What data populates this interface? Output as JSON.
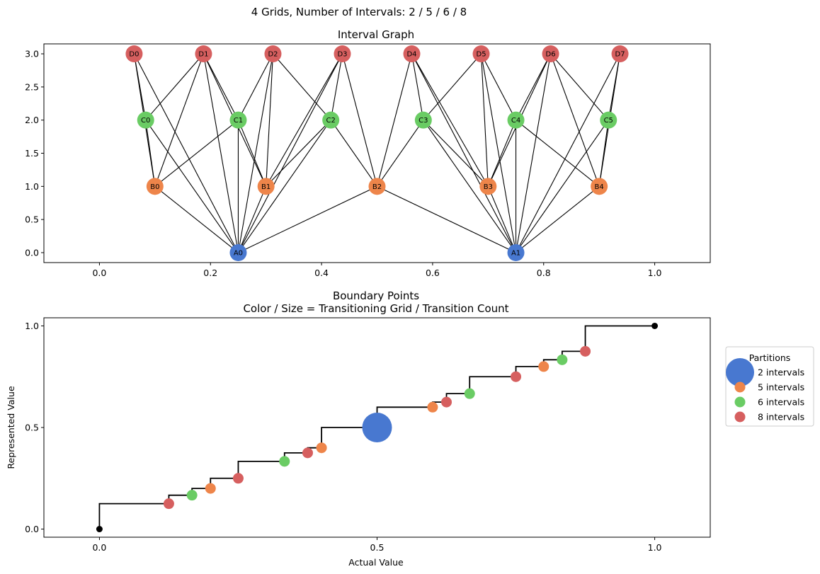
{
  "figure": {
    "suptitle": "4 Grids, Number of Intervals: 2 / 5 / 6 / 8"
  },
  "colors": {
    "A": "#4878d0",
    "B": "#ee854a",
    "C": "#6acc64",
    "D": "#d65f5f",
    "endpoint": "#000000"
  },
  "chart_data": [
    {
      "type": "network",
      "title": "Interval Graph",
      "xlim": [
        -0.1,
        1.1
      ],
      "ylim": [
        -0.15,
        3.15
      ],
      "xticks": [
        0.0,
        0.2,
        0.4,
        0.6,
        0.8,
        1.0
      ],
      "xtick_labels": [
        "0.0",
        "0.2",
        "0.4",
        "0.6",
        "0.8",
        "1.0"
      ],
      "yticks": [
        0.0,
        0.5,
        1.0,
        1.5,
        2.0,
        2.5,
        3.0
      ],
      "ytick_labels": [
        "0.0",
        "0.5",
        "1.0",
        "1.5",
        "2.0",
        "2.5",
        "3.0"
      ],
      "nodes": [
        {
          "id": "A0",
          "x": 0.25,
          "y": 0,
          "group": "A"
        },
        {
          "id": "A1",
          "x": 0.75,
          "y": 0,
          "group": "A"
        },
        {
          "id": "B0",
          "x": 0.1,
          "y": 1,
          "group": "B"
        },
        {
          "id": "B1",
          "x": 0.3,
          "y": 1,
          "group": "B"
        },
        {
          "id": "B2",
          "x": 0.5,
          "y": 1,
          "group": "B"
        },
        {
          "id": "B3",
          "x": 0.7,
          "y": 1,
          "group": "B"
        },
        {
          "id": "B4",
          "x": 0.9,
          "y": 1,
          "group": "B"
        },
        {
          "id": "C0",
          "x": 0.0833,
          "y": 2,
          "group": "C"
        },
        {
          "id": "C1",
          "x": 0.25,
          "y": 2,
          "group": "C"
        },
        {
          "id": "C2",
          "x": 0.4167,
          "y": 2,
          "group": "C"
        },
        {
          "id": "C3",
          "x": 0.5833,
          "y": 2,
          "group": "C"
        },
        {
          "id": "C4",
          "x": 0.75,
          "y": 2,
          "group": "C"
        },
        {
          "id": "C5",
          "x": 0.9167,
          "y": 2,
          "group": "C"
        },
        {
          "id": "D0",
          "x": 0.0625,
          "y": 3,
          "group": "D"
        },
        {
          "id": "D1",
          "x": 0.1875,
          "y": 3,
          "group": "D"
        },
        {
          "id": "D2",
          "x": 0.3125,
          "y": 3,
          "group": "D"
        },
        {
          "id": "D3",
          "x": 0.4375,
          "y": 3,
          "group": "D"
        },
        {
          "id": "D4",
          "x": 0.5625,
          "y": 3,
          "group": "D"
        },
        {
          "id": "D5",
          "x": 0.6875,
          "y": 3,
          "group": "D"
        },
        {
          "id": "D6",
          "x": 0.8125,
          "y": 3,
          "group": "D"
        },
        {
          "id": "D7",
          "x": 0.9375,
          "y": 3,
          "group": "D"
        }
      ],
      "edges": [
        [
          "A0",
          "B0"
        ],
        [
          "A0",
          "B1"
        ],
        [
          "A0",
          "B2"
        ],
        [
          "A0",
          "C0"
        ],
        [
          "A0",
          "C1"
        ],
        [
          "A0",
          "C2"
        ],
        [
          "A0",
          "D0"
        ],
        [
          "A0",
          "D1"
        ],
        [
          "A0",
          "D2"
        ],
        [
          "A0",
          "D3"
        ],
        [
          "A1",
          "B2"
        ],
        [
          "A1",
          "B3"
        ],
        [
          "A1",
          "B4"
        ],
        [
          "A1",
          "C3"
        ],
        [
          "A1",
          "C4"
        ],
        [
          "A1",
          "C5"
        ],
        [
          "A1",
          "D4"
        ],
        [
          "A1",
          "D5"
        ],
        [
          "A1",
          "D6"
        ],
        [
          "A1",
          "D7"
        ],
        [
          "B0",
          "C0"
        ],
        [
          "B0",
          "C1"
        ],
        [
          "B0",
          "D0"
        ],
        [
          "B0",
          "D1"
        ],
        [
          "B1",
          "C1"
        ],
        [
          "B1",
          "C2"
        ],
        [
          "B1",
          "D1"
        ],
        [
          "B1",
          "D2"
        ],
        [
          "B1",
          "D3"
        ],
        [
          "B2",
          "C2"
        ],
        [
          "B2",
          "C3"
        ],
        [
          "B2",
          "D3"
        ],
        [
          "B2",
          "D4"
        ],
        [
          "B3",
          "C3"
        ],
        [
          "B3",
          "C4"
        ],
        [
          "B3",
          "D4"
        ],
        [
          "B3",
          "D5"
        ],
        [
          "B3",
          "D6"
        ],
        [
          "B4",
          "C4"
        ],
        [
          "B4",
          "C5"
        ],
        [
          "B4",
          "D6"
        ],
        [
          "B4",
          "D7"
        ],
        [
          "C0",
          "D0"
        ],
        [
          "C0",
          "D1"
        ],
        [
          "C1",
          "D1"
        ],
        [
          "C1",
          "D2"
        ],
        [
          "C2",
          "D2"
        ],
        [
          "C2",
          "D3"
        ],
        [
          "C3",
          "D4"
        ],
        [
          "C3",
          "D5"
        ],
        [
          "C4",
          "D5"
        ],
        [
          "C4",
          "D6"
        ],
        [
          "C5",
          "D6"
        ],
        [
          "C5",
          "D7"
        ]
      ]
    },
    {
      "type": "scatter",
      "title": "Boundary Points",
      "subtitle": "Color / Size = Transitioning Grid / Transition Count",
      "xlabel": "Actual Value",
      "ylabel": "Represented Value",
      "xlim": [
        -0.1,
        1.1
      ],
      "ylim": [
        -0.04,
        1.04
      ],
      "xticks": [
        0.0,
        0.5,
        1.0
      ],
      "xtick_labels": [
        "0.0",
        "0.5",
        "1.0"
      ],
      "yticks": [
        0.0,
        0.5,
        1.0
      ],
      "ytick_labels": [
        "0.0",
        "0.5",
        "1.0"
      ],
      "step_points": [
        [
          0,
          0
        ],
        [
          0.125,
          0.125
        ],
        [
          0.1667,
          0.1667
        ],
        [
          0.2,
          0.2
        ],
        [
          0.25,
          0.25
        ],
        [
          0.3333,
          0.3333
        ],
        [
          0.375,
          0.375
        ],
        [
          0.4,
          0.4
        ],
        [
          0.5,
          0.5
        ],
        [
          0.6,
          0.6
        ],
        [
          0.625,
          0.625
        ],
        [
          0.6667,
          0.6667
        ],
        [
          0.75,
          0.75
        ],
        [
          0.8,
          0.8
        ],
        [
          0.8333,
          0.8333
        ],
        [
          0.875,
          0.875
        ],
        [
          1,
          1
        ]
      ],
      "endpoints": [
        [
          0,
          0
        ],
        [
          1,
          1
        ]
      ],
      "points": [
        {
          "x": 0.125,
          "y": 0.125,
          "group": "D",
          "count": 1
        },
        {
          "x": 0.1667,
          "y": 0.1667,
          "group": "C",
          "count": 1
        },
        {
          "x": 0.2,
          "y": 0.2,
          "group": "B",
          "count": 1
        },
        {
          "x": 0.25,
          "y": 0.25,
          "group": "D",
          "count": 1
        },
        {
          "x": 0.3333,
          "y": 0.3333,
          "group": "C",
          "count": 1
        },
        {
          "x": 0.375,
          "y": 0.375,
          "group": "D",
          "count": 1
        },
        {
          "x": 0.4,
          "y": 0.4,
          "group": "B",
          "count": 1
        },
        {
          "x": 0.5,
          "y": 0.5,
          "group": "A",
          "count": 4
        },
        {
          "x": 0.6,
          "y": 0.6,
          "group": "B",
          "count": 1
        },
        {
          "x": 0.625,
          "y": 0.625,
          "group": "D",
          "count": 1
        },
        {
          "x": 0.6667,
          "y": 0.6667,
          "group": "C",
          "count": 1
        },
        {
          "x": 0.75,
          "y": 0.75,
          "group": "D",
          "count": 1
        },
        {
          "x": 0.8,
          "y": 0.8,
          "group": "B",
          "count": 1
        },
        {
          "x": 0.8333,
          "y": 0.8333,
          "group": "C",
          "count": 1
        },
        {
          "x": 0.875,
          "y": 0.875,
          "group": "D",
          "count": 1
        }
      ],
      "legend": {
        "title": "Partitions",
        "placement": "outside-right",
        "entries": [
          {
            "label": "2 intervals",
            "group": "A",
            "count": 4
          },
          {
            "label": "5 intervals",
            "group": "B",
            "count": 1
          },
          {
            "label": "6 intervals",
            "group": "C",
            "count": 1
          },
          {
            "label": "8 intervals",
            "group": "D",
            "count": 1
          }
        ]
      }
    }
  ]
}
